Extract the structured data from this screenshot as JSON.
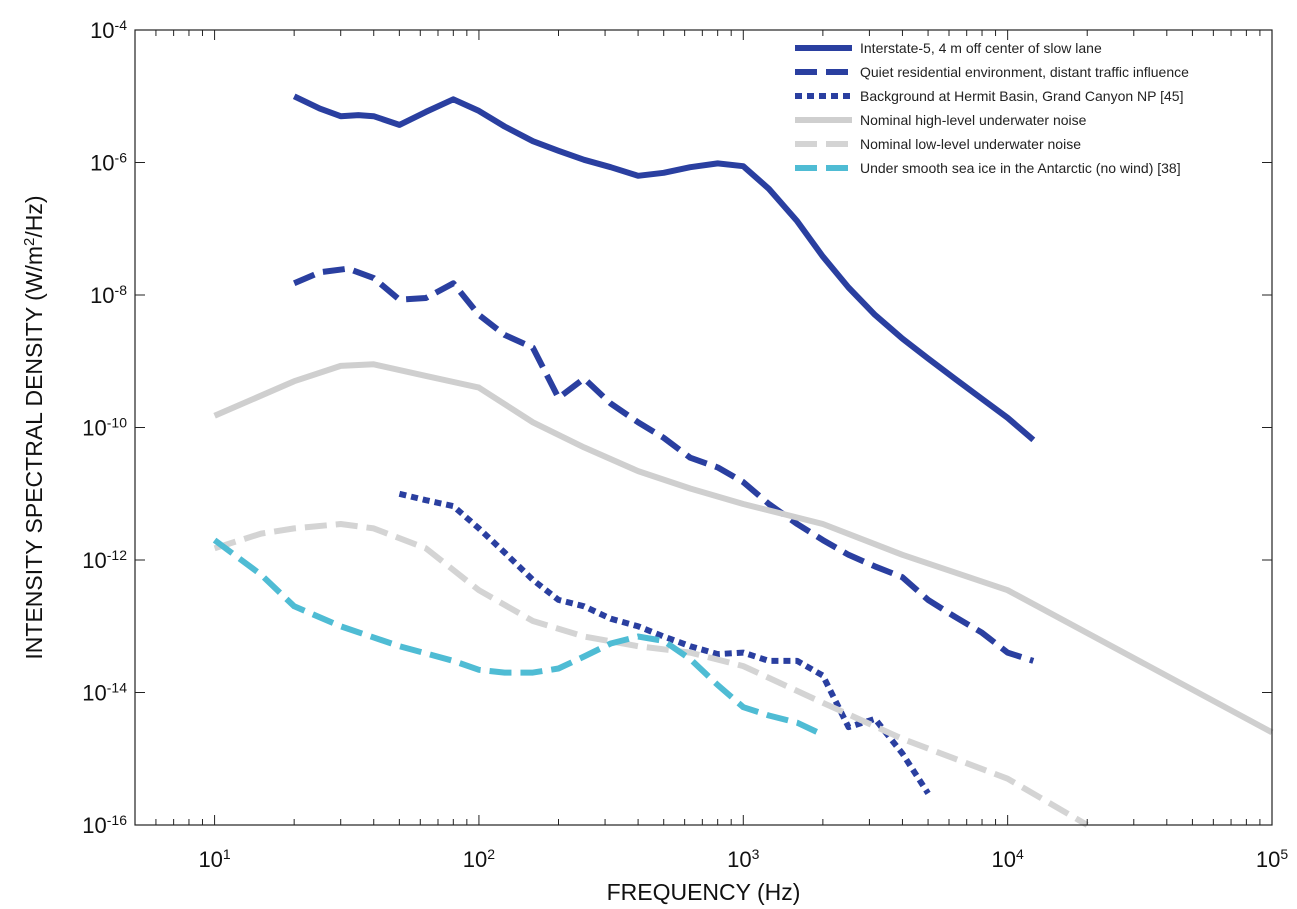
{
  "chart_data": {
    "type": "line",
    "title": "",
    "xlabel": "FREQUENCY (Hz)",
    "ylabel_parts": [
      "INTENSITY SPECTRAL DENSITY (W/m",
      "2",
      "/Hz)"
    ],
    "x_scale": "log",
    "y_scale": "log",
    "xlim": [
      5,
      100000
    ],
    "ylim": [
      1e-16,
      0.0001
    ],
    "x_ticks": [
      {
        "value": 10,
        "base": "10",
        "exp": "1"
      },
      {
        "value": 100,
        "base": "10",
        "exp": "2"
      },
      {
        "value": 1000,
        "base": "10",
        "exp": "3"
      },
      {
        "value": 10000,
        "base": "10",
        "exp": "4"
      },
      {
        "value": 100000,
        "base": "10",
        "exp": "5"
      }
    ],
    "y_ticks": [
      {
        "value": 0.0001,
        "base": "10",
        "exp": "-4"
      },
      {
        "value": 1e-06,
        "base": "10",
        "exp": "-6"
      },
      {
        "value": 1e-08,
        "base": "10",
        "exp": "-8"
      },
      {
        "value": 1e-10,
        "base": "10",
        "exp": "-10"
      },
      {
        "value": 1e-12,
        "base": "10",
        "exp": "-12"
      },
      {
        "value": 1e-14,
        "base": "10",
        "exp": "-14"
      },
      {
        "value": 1e-16,
        "base": "10",
        "exp": "-16"
      }
    ],
    "grid": false,
    "legend_position": "top-right",
    "series": [
      {
        "name": "Interstate-5, 4 m off center of slow lane",
        "color": "#2a3fa0",
        "style": "solid",
        "x": [
          20,
          25,
          30,
          35,
          40,
          50,
          63,
          80,
          100,
          125,
          160,
          200,
          250,
          315,
          400,
          500,
          630,
          800,
          1000,
          1250,
          1600,
          2000,
          2500,
          3150,
          4000,
          5000,
          6300,
          8000,
          10000,
          12500
        ],
        "y": [
          1e-05,
          6.5e-06,
          5e-06,
          5.2e-06,
          5e-06,
          3.7e-06,
          5.8e-06,
          9e-06,
          6e-06,
          3.5e-06,
          2.1e-06,
          1.5e-06,
          1.1e-06,
          8.5e-07,
          6.3e-07,
          7e-07,
          8.5e-07,
          9.7e-07,
          8.8e-07,
          4e-07,
          1.3e-07,
          3.8e-08,
          1.3e-08,
          5e-09,
          2.2e-09,
          1.1e-09,
          5.5e-10,
          2.7e-10,
          1.4e-10,
          6.5e-11
        ]
      },
      {
        "name": "Quiet residential environment, distant traffic influence",
        "color": "#2a3fa0",
        "style": "dashed",
        "x": [
          20,
          25,
          32,
          40,
          50,
          63,
          80,
          100,
          125,
          160,
          200,
          250,
          315,
          400,
          500,
          630,
          800,
          1000,
          1250,
          1600,
          2000,
          2500,
          3150,
          4000,
          5000,
          6300,
          8000,
          10000,
          12500
        ],
        "y": [
          1.5e-08,
          2.2e-08,
          2.5e-08,
          1.8e-08,
          8.5e-09,
          9e-09,
          1.5e-08,
          5e-09,
          2.5e-09,
          1.6e-09,
          2.8e-10,
          5.5e-10,
          2.3e-10,
          1.2e-10,
          7e-11,
          3.5e-11,
          2.5e-11,
          1.5e-11,
          7e-12,
          3.5e-12,
          2e-12,
          1.2e-12,
          8e-13,
          5.5e-13,
          2.5e-13,
          1.4e-13,
          8e-14,
          4e-14,
          3e-14
        ]
      },
      {
        "name": "Background at Hermit Basin, Grand Canyon NP [45]",
        "color": "#2a3fa0",
        "style": "dotted",
        "x": [
          50,
          63,
          80,
          100,
          125,
          160,
          200,
          250,
          315,
          400,
          500,
          630,
          800,
          1000,
          1250,
          1600,
          2000,
          2500,
          3150,
          4000,
          5000
        ],
        "y": [
          1e-11,
          8e-12,
          6.5e-12,
          3e-12,
          1.3e-12,
          5e-13,
          2.5e-13,
          2e-13,
          1.3e-13,
          1e-13,
          7e-14,
          5e-14,
          3.8e-14,
          4e-14,
          3e-14,
          3e-14,
          1.8e-14,
          3e-15,
          4e-15,
          1.2e-15,
          3e-16
        ]
      },
      {
        "name": "Nominal high-level underwater noise",
        "color": "#cfcfcf",
        "style": "solid",
        "x": [
          10,
          20,
          30,
          40,
          63,
          100,
          160,
          250,
          400,
          630,
          1000,
          2000,
          4000,
          10000,
          100000
        ],
        "y": [
          1.5e-10,
          5e-10,
          8.5e-10,
          9e-10,
          6e-10,
          4e-10,
          1.2e-10,
          5e-11,
          2.2e-11,
          1.2e-11,
          7e-12,
          3.5e-12,
          1.2e-12,
          3.5e-13,
          2.5e-15
        ]
      },
      {
        "name": "Nominal low-level underwater noise",
        "color": "#d4d4d4",
        "style": "dashed",
        "x": [
          10,
          15,
          20,
          30,
          40,
          63,
          100,
          160,
          250,
          400,
          630,
          1000,
          2000,
          4000,
          10000,
          20000
        ],
        "y": [
          1.5e-12,
          2.5e-12,
          3e-12,
          3.5e-12,
          3e-12,
          1.5e-12,
          3.5e-13,
          1.2e-13,
          7e-14,
          5e-14,
          4e-14,
          2.5e-14,
          7e-15,
          2e-15,
          5e-16,
          1e-16
        ]
      },
      {
        "name": "Under smooth sea ice in the Antarctic (no wind) [38]",
        "color": "#4fbcd4",
        "style": "dashed",
        "x": [
          10,
          15,
          20,
          30,
          50,
          80,
          100,
          125,
          160,
          200,
          250,
          315,
          400,
          500,
          630,
          800,
          1000,
          1250,
          1600,
          2000
        ],
        "y": [
          2e-12,
          6e-13,
          2e-13,
          1e-13,
          5e-14,
          3e-14,
          2.2e-14,
          2e-14,
          2e-14,
          2.3e-14,
          3.5e-14,
          5.5e-14,
          7e-14,
          6e-14,
          3.2e-14,
          1.3e-14,
          6e-15,
          4.5e-15,
          3.5e-15,
          2.3e-15
        ]
      }
    ]
  }
}
